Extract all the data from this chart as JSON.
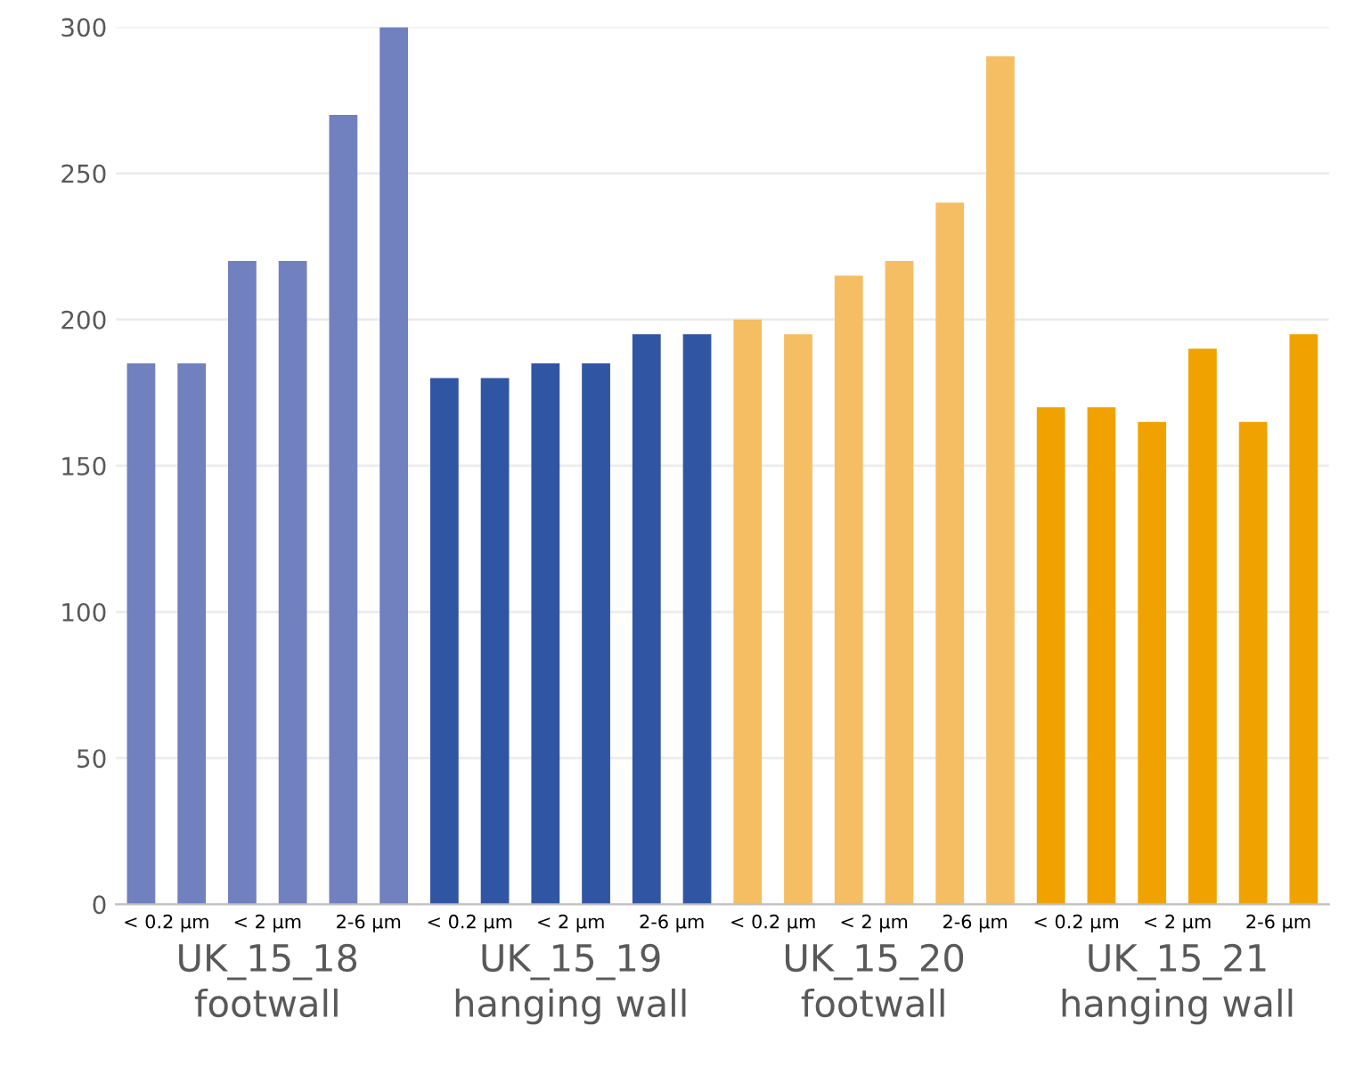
{
  "chart_data": {
    "type": "bar",
    "categories": [
      "< 0.2 µm",
      "< 2 µm",
      "2-6 µm",
      "< 0.2 µm",
      "< 2 µm",
      "2-6 µm",
      "< 0.2 µm",
      "< 2 µm",
      "2-6 µm",
      "< 0.2 µm",
      "< 2 µm",
      "2-6 µm"
    ],
    "series": [
      {
        "colors": [
          "#7181bf",
          "#7181bf",
          "#7181bf",
          "#3056a3",
          "#3056a3",
          "#3056a3",
          "#f5be63",
          "#f5be63",
          "#f5be63",
          "#f0a300",
          "#f0a300",
          "#f0a300"
        ],
        "values": [
          185,
          220,
          270,
          180,
          185,
          195,
          200,
          215,
          240,
          170,
          165,
          165
        ]
      },
      {
        "colors": [
          "#7181bf",
          "#7181bf",
          "#7181bf",
          "#3056a3",
          "#3056a3",
          "#3056a3",
          "#f5be63",
          "#f5be63",
          "#f5be63",
          "#f0a300",
          "#f0a300",
          "#f0a300"
        ],
        "values": [
          185,
          220,
          300,
          180,
          185,
          195,
          195,
          220,
          290,
          170,
          190,
          195
        ]
      }
    ],
    "annotations": [
      "UK_15_18\nfootwall",
      "UK_15_19\nhanging wall",
      "UK_15_20\nfootwall",
      "UK_15_21\nhanging wall"
    ],
    "ylim": [
      0,
      300
    ],
    "yticks": [
      0,
      50,
      100,
      150,
      200,
      250,
      300
    ],
    "grid": "y"
  }
}
